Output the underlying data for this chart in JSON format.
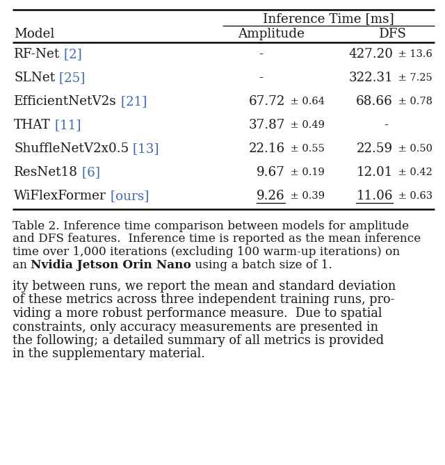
{
  "title_header": "Inference Time [ms]",
  "col_headers": [
    "Model",
    "Amplitude",
    "DFS"
  ],
  "rows": [
    {
      "model": "RF-Net",
      "ref": " [2]",
      "amp": "-",
      "amp_std": "",
      "dfs": "427.20",
      "dfs_std": " ± 13.6",
      "amp_ul": false,
      "dfs_ul": false,
      "amp_is_dash": true,
      "dfs_is_dash": false
    },
    {
      "model": "SLNet",
      "ref": " [25]",
      "amp": "-",
      "amp_std": "",
      "dfs": "322.31",
      "dfs_std": " ± 7.25",
      "amp_ul": false,
      "dfs_ul": false,
      "amp_is_dash": true,
      "dfs_is_dash": false
    },
    {
      "model": "EfficientNetV2s",
      "ref": " [21]",
      "amp": "67.72",
      "amp_std": " ± 0.64",
      "dfs": "68.66",
      "dfs_std": " ± 0.78",
      "amp_ul": false,
      "dfs_ul": false,
      "amp_is_dash": false,
      "dfs_is_dash": false
    },
    {
      "model": "THAT",
      "ref": " [11]",
      "amp": "37.87",
      "amp_std": " ± 0.49",
      "dfs": "-",
      "dfs_std": "",
      "amp_ul": false,
      "dfs_ul": false,
      "amp_is_dash": false,
      "dfs_is_dash": true
    },
    {
      "model": "ShuffleNetV2x0.5",
      "ref": " [13]",
      "amp": "22.16",
      "amp_std": " ± 0.55",
      "dfs": "22.59",
      "dfs_std": " ± 0.50",
      "amp_ul": false,
      "dfs_ul": false,
      "amp_is_dash": false,
      "dfs_is_dash": false
    },
    {
      "model": "ResNet18",
      "ref": " [6]",
      "amp": "9.67",
      "amp_std": " ± 0.19",
      "dfs": "12.01",
      "dfs_std": " ± 0.42",
      "amp_ul": false,
      "dfs_ul": false,
      "amp_is_dash": false,
      "dfs_is_dash": false
    },
    {
      "model": "WiFlexFormer",
      "ref": " [ours]",
      "amp": "9.26",
      "amp_std": " ± 0.39",
      "dfs": "11.06",
      "dfs_std": " ± 0.63",
      "amp_ul": true,
      "dfs_ul": true,
      "amp_is_dash": false,
      "dfs_is_dash": false
    }
  ],
  "caption_pre": "Table 2. Inference time comparison between models for amplitude\nand DFS features.  Inference time is reported as the mean inference\ntime over 1,000 iterations (excluding 100 warm-up iterations) on\nan ",
  "caption_bold": "Nvidia Jetson Orin Nano",
  "caption_post": " using a batch size of 1.",
  "body_text": "ity between runs, we report the mean and standard deviation\nof these metrics across three independent training runs, pro-\nviding a more robust performance measure.  Due to spatial\nconstraints, only accuracy measurements are presented in\nthe following; a detailed summary of all metrics is provided\nin the supplementary material.",
  "ref_color": "#4169B0",
  "text_color": "#1a1a1a",
  "bg_color": "#ffffff",
  "table_fs": 13.2,
  "std_fs": 10.5,
  "caption_fs": 12.2,
  "body_fs": 12.8
}
